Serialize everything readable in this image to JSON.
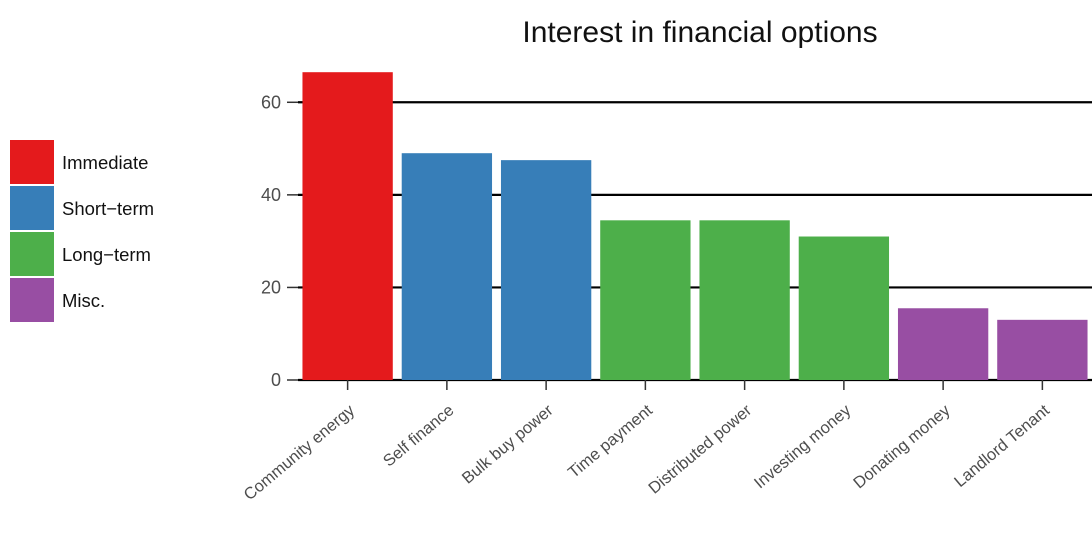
{
  "chart_data": {
    "type": "bar",
    "title": "Interest in financial options",
    "xlabel": "",
    "ylabel": "",
    "categories": [
      "Community energy",
      "Self finance",
      "Bulk buy power",
      "Time payment",
      "Distributed power",
      "Investing money",
      "Donating money",
      "Landlord Tenant"
    ],
    "values": [
      66.5,
      49,
      47.5,
      34.5,
      34.5,
      31,
      15.5,
      13
    ],
    "groups": [
      "Immediate",
      "Short−term",
      "Short−term",
      "Long−term",
      "Long−term",
      "Long−term",
      "Misc.",
      "Misc."
    ],
    "ylim": [
      0,
      70
    ],
    "yticks": [
      0,
      20,
      40,
      60
    ],
    "ytick_labels": [
      "0",
      "20",
      "40",
      "60"
    ],
    "grid": true,
    "legend": {
      "placement": "left",
      "entries": [
        {
          "label": "Immediate",
          "color": "#e41a1c"
        },
        {
          "label": "Short−term",
          "color": "#377eb8"
        },
        {
          "label": "Long−term",
          "color": "#4daf4a"
        },
        {
          "label": "Misc.",
          "color": "#984ea3"
        }
      ]
    }
  }
}
